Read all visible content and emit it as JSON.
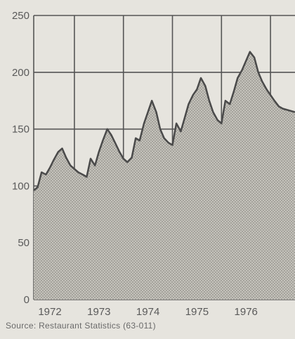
{
  "source_note": "Source: Restaurant Statistics (63-011)",
  "colors": {
    "background": "#e6e4de",
    "grid": "#555555",
    "area_fill": "#c9c7c1",
    "line": "#4a4a4a",
    "text": "#5a5a5a"
  },
  "chart_data": {
    "type": "area",
    "title": "",
    "xlabel": "",
    "ylabel": "",
    "ylim": [
      0,
      250
    ],
    "yticks": [
      0,
      50,
      100,
      150,
      200,
      250
    ],
    "xticks": [
      "1972",
      "1973",
      "1974",
      "1975",
      "1976"
    ],
    "xlim": [
      1971.67,
      1977.0
    ],
    "grid": true,
    "series": [
      {
        "x": [
          1971.67,
          1971.75,
          1971.83,
          1971.92,
          1972.0,
          1972.08,
          1972.17,
          1972.25,
          1972.33,
          1972.42,
          1972.5,
          1972.58,
          1972.67,
          1972.75,
          1972.83,
          1972.92,
          1973.0,
          1973.08,
          1973.17,
          1973.25,
          1973.33,
          1973.42,
          1973.5,
          1973.58,
          1973.67,
          1973.75,
          1973.83,
          1973.92,
          1974.0,
          1974.08,
          1974.17,
          1974.25,
          1974.33,
          1974.42,
          1974.5,
          1974.58,
          1974.67,
          1974.75,
          1974.83,
          1974.92,
          1975.0,
          1975.08,
          1975.17,
          1975.25,
          1975.33,
          1975.42,
          1975.5,
          1975.58,
          1975.67,
          1975.75,
          1975.83,
          1975.92,
          1976.0,
          1976.08,
          1976.17,
          1976.25,
          1976.33,
          1976.42,
          1976.5,
          1976.58,
          1976.67,
          1976.75,
          1977.0
        ],
        "values": [
          96,
          99,
          112,
          110,
          116,
          123,
          130,
          133,
          125,
          118,
          115,
          112,
          110,
          108,
          124,
          118,
          130,
          140,
          150,
          145,
          138,
          130,
          124,
          121,
          125,
          142,
          140,
          155,
          165,
          175,
          165,
          150,
          142,
          138,
          136,
          155,
          148,
          160,
          172,
          180,
          185,
          195,
          188,
          175,
          165,
          158,
          155,
          175,
          172,
          183,
          195,
          202,
          210,
          218,
          213,
          200,
          192,
          185,
          180,
          175,
          170,
          168,
          165
        ]
      }
    ]
  }
}
